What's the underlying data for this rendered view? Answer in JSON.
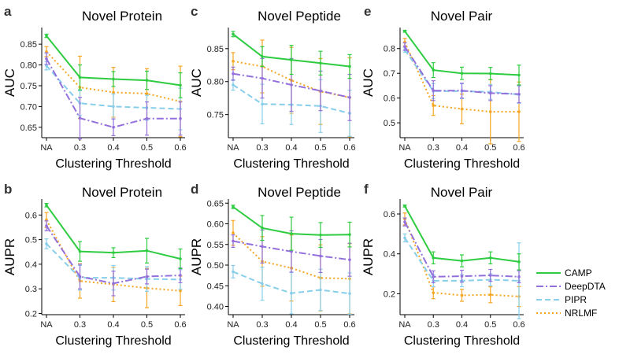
{
  "colors": {
    "CAMP": "#2ecc40",
    "DeepDTA": "#9370db",
    "PIPR": "#87ceeb",
    "NRLMF": "#f5a623"
  },
  "legend": {
    "items": [
      "CAMP",
      "DeepDTA",
      "PIPR",
      "NRLMF"
    ]
  },
  "chart_data": [
    {
      "id": "a",
      "type": "line",
      "title": "Novel Protein",
      "ylabel": "AUC",
      "xlabel": "Clustering Threshold",
      "categories": [
        "NA",
        "0.3",
        "0.4",
        "0.5",
        "0.6"
      ],
      "ylim": [
        0.625,
        0.89
      ],
      "yticks": [
        0.65,
        0.7,
        0.75,
        0.8,
        0.85
      ],
      "ytick_labels": [
        "0.65",
        "0.70",
        "0.75",
        "0.80",
        "0.85"
      ],
      "series": [
        {
          "name": "CAMP",
          "values": [
            0.87,
            0.77,
            0.766,
            0.763,
            0.751
          ],
          "err": [
            0.004,
            0.03,
            0.018,
            0.022,
            0.03
          ]
        },
        {
          "name": "DeepDTA",
          "values": [
            0.815,
            0.672,
            0.65,
            0.671,
            0.671
          ],
          "err": [
            0.014,
            0.05,
            0.02,
            0.04,
            0.04
          ]
        },
        {
          "name": "PIPR",
          "values": [
            0.798,
            0.708,
            0.7,
            0.697,
            0.694
          ],
          "err": [
            0.01,
            0.03,
            0.03,
            0.03,
            0.05
          ]
        },
        {
          "name": "NRLMF",
          "values": [
            0.832,
            0.746,
            0.734,
            0.731,
            0.712
          ],
          "err": [
            0.012,
            0.075,
            0.06,
            0.06,
            0.085
          ]
        }
      ]
    },
    {
      "id": "c",
      "type": "line",
      "title": "Novel Peptide",
      "ylabel": "AUC",
      "xlabel": "Clustering Threshold",
      "categories": [
        "NA",
        "0.3",
        "0.4",
        "0.5",
        "0.6"
      ],
      "ylim": [
        0.715,
        0.882
      ],
      "yticks": [
        0.75,
        0.8,
        0.85
      ],
      "ytick_labels": [
        "0.75",
        "0.80",
        "0.85"
      ],
      "series": [
        {
          "name": "CAMP",
          "values": [
            0.872,
            0.838,
            0.833,
            0.828,
            0.823
          ],
          "err": [
            0.004,
            0.015,
            0.022,
            0.018,
            0.018
          ]
        },
        {
          "name": "DeepDTA",
          "values": [
            0.812,
            0.805,
            0.795,
            0.786,
            0.776
          ],
          "err": [
            0.01,
            0.03,
            0.04,
            0.03,
            0.035
          ]
        },
        {
          "name": "PIPR",
          "values": [
            0.795,
            0.766,
            0.765,
            0.763,
            0.752
          ],
          "err": [
            0.008,
            0.03,
            0.03,
            0.04,
            0.035
          ]
        },
        {
          "name": "NRLMF",
          "values": [
            0.831,
            0.823,
            0.802,
            0.785,
            0.776
          ],
          "err": [
            0.013,
            0.04,
            0.05,
            0.05,
            0.06
          ]
        }
      ]
    },
    {
      "id": "e",
      "type": "line",
      "title": "Novel Pair",
      "ylabel": "AUC",
      "xlabel": "Clustering Threshold",
      "categories": [
        "NA",
        "0.3",
        "0.4",
        "0.5",
        "0.6"
      ],
      "ylim": [
        0.44,
        0.885
      ],
      "yticks": [
        0.5,
        0.6,
        0.7,
        0.8
      ],
      "ytick_labels": [
        "0.5",
        "0.6",
        "0.7",
        "0.8"
      ],
      "series": [
        {
          "name": "CAMP",
          "values": [
            0.87,
            0.713,
            0.7,
            0.699,
            0.693
          ],
          "err": [
            0.004,
            0.03,
            0.025,
            0.025,
            0.04
          ]
        },
        {
          "name": "DeepDTA",
          "values": [
            0.808,
            0.63,
            0.63,
            0.62,
            0.616
          ],
          "err": [
            0.015,
            0.04,
            0.03,
            0.03,
            0.035
          ]
        },
        {
          "name": "PIPR",
          "values": [
            0.795,
            0.628,
            0.628,
            0.625,
            0.614
          ],
          "err": [
            0.01,
            0.03,
            0.03,
            0.03,
            0.035
          ]
        },
        {
          "name": "NRLMF",
          "values": [
            0.826,
            0.57,
            0.556,
            0.545,
            0.545
          ],
          "err": [
            0.015,
            0.04,
            0.06,
            0.13,
            0.12
          ]
        }
      ]
    },
    {
      "id": "b",
      "type": "line",
      "title": "Novel Protein",
      "ylabel": "AUPR",
      "xlabel": "Clustering Threshold",
      "categories": [
        "NA",
        "0.3",
        "0.4",
        "0.5",
        "0.6"
      ],
      "ylim": [
        0.195,
        0.665
      ],
      "yticks": [
        0.2,
        0.3,
        0.4,
        0.5,
        0.6
      ],
      "ytick_labels": [
        "0.2",
        "0.3",
        "0.4",
        "0.5",
        "0.6"
      ],
      "series": [
        {
          "name": "CAMP",
          "values": [
            0.64,
            0.452,
            0.447,
            0.455,
            0.422
          ],
          "err": [
            0.007,
            0.04,
            0.02,
            0.05,
            0.04
          ]
        },
        {
          "name": "DeepDTA",
          "values": [
            0.556,
            0.35,
            0.322,
            0.35,
            0.355
          ],
          "err": [
            0.02,
            0.05,
            0.05,
            0.03,
            0.03
          ]
        },
        {
          "name": "PIPR",
          "values": [
            0.483,
            0.345,
            0.345,
            0.34,
            0.338
          ],
          "err": [
            0.02,
            0.05,
            0.05,
            0.05,
            0.04
          ]
        },
        {
          "name": "NRLMF",
          "values": [
            0.58,
            0.332,
            0.318,
            0.303,
            0.292
          ],
          "err": [
            0.03,
            0.07,
            0.07,
            0.08,
            0.06
          ]
        }
      ]
    },
    {
      "id": "d",
      "type": "line",
      "title": "Novel Peptide",
      "ylabel": "AUPR",
      "xlabel": "Clustering Threshold",
      "categories": [
        "NA",
        "0.3",
        "0.4",
        "0.5",
        "0.6"
      ],
      "ylim": [
        0.38,
        0.66
      ],
      "yticks": [
        0.4,
        0.45,
        0.5,
        0.55,
        0.6,
        0.65
      ],
      "ytick_labels": [
        "0.40",
        "0.45",
        "0.50",
        "0.55",
        "0.60",
        "0.65"
      ],
      "series": [
        {
          "name": "CAMP",
          "values": [
            0.641,
            0.59,
            0.576,
            0.573,
            0.574
          ],
          "err": [
            0.004,
            0.03,
            0.04,
            0.03,
            0.03
          ]
        },
        {
          "name": "DeepDTA",
          "values": [
            0.558,
            0.545,
            0.533,
            0.522,
            0.513
          ],
          "err": [
            0.015,
            0.04,
            0.05,
            0.04,
            0.04
          ]
        },
        {
          "name": "PIPR",
          "values": [
            0.484,
            0.455,
            0.432,
            0.44,
            0.431
          ],
          "err": [
            0.015,
            0.04,
            0.05,
            0.05,
            0.05
          ]
        },
        {
          "name": "NRLMF",
          "values": [
            0.578,
            0.509,
            0.493,
            0.469,
            0.467
          ],
          "err": [
            0.03,
            0.06,
            0.08,
            0.08,
            0.085
          ]
        }
      ]
    },
    {
      "id": "f",
      "type": "line",
      "title": "Novel Pair",
      "ylabel": "AUPR",
      "xlabel": "Clustering Threshold",
      "categories": [
        "NA",
        "0.3",
        "0.4",
        "0.5",
        "0.6"
      ],
      "ylim": [
        0.095,
        0.675
      ],
      "yticks": [
        0.2,
        0.4,
        0.6
      ],
      "ytick_labels": [
        "0.2",
        "0.4",
        "0.6"
      ],
      "series": [
        {
          "name": "CAMP",
          "values": [
            0.64,
            0.38,
            0.365,
            0.38,
            0.36
          ],
          "err": [
            0.005,
            0.03,
            0.03,
            0.03,
            0.04
          ]
        },
        {
          "name": "DeepDTA",
          "values": [
            0.56,
            0.285,
            0.288,
            0.292,
            0.285
          ],
          "err": [
            0.02,
            0.03,
            0.03,
            0.03,
            0.03
          ]
        },
        {
          "name": "PIPR",
          "values": [
            0.48,
            0.265,
            0.265,
            0.27,
            0.265
          ],
          "err": [
            0.02,
            0.03,
            0.03,
            0.03,
            0.19
          ]
        },
        {
          "name": "NRLMF",
          "values": [
            0.575,
            0.205,
            0.192,
            0.195,
            0.186
          ],
          "err": [
            0.03,
            0.03,
            0.03,
            0.04,
            0.05
          ]
        }
      ]
    }
  ]
}
